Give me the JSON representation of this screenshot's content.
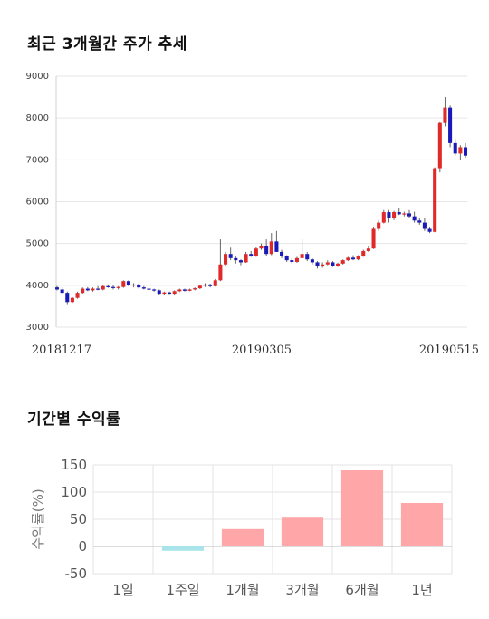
{
  "titles": {
    "price_chart": "최근 3개월간 주가 추세",
    "returns_chart": "기간별 수익률"
  },
  "colors": {
    "up": "#e02a2a",
    "down": "#1a1ab8",
    "wick": "#666666",
    "grid": "#e6e6e6",
    "bar_positive": "#ffa7a8",
    "bar_negative": "#a8e4ea"
  },
  "chart_data": [
    {
      "type": "candlestick",
      "title": "최근 3개월간 주가 추세",
      "ylim": [
        3000,
        9000
      ],
      "yticks": [
        3000,
        4000,
        5000,
        6000,
        7000,
        8000,
        9000
      ],
      "xtick_labels": [
        "20181217",
        "20190305",
        "20190515"
      ],
      "grid": "horizontal",
      "candles": [
        [
          3950,
          3980,
          3880,
          3900
        ],
        [
          3900,
          3950,
          3800,
          3820
        ],
        [
          3820,
          3850,
          3550,
          3600
        ],
        [
          3600,
          3720,
          3580,
          3700
        ],
        [
          3700,
          3850,
          3680,
          3820
        ],
        [
          3820,
          3950,
          3800,
          3920
        ],
        [
          3920,
          3960,
          3860,
          3880
        ],
        [
          3880,
          3950,
          3850,
          3920
        ],
        [
          3920,
          3980,
          3880,
          3900
        ],
        [
          3900,
          4000,
          3880,
          3980
        ],
        [
          3980,
          4020,
          3940,
          3960
        ],
        [
          3960,
          4000,
          3900,
          3950
        ],
        [
          3950,
          3980,
          3900,
          3960
        ],
        [
          3960,
          4120,
          3940,
          4100
        ],
        [
          4100,
          4120,
          3980,
          4000
        ],
        [
          4000,
          4050,
          3950,
          4020
        ],
        [
          4020,
          4040,
          3920,
          3950
        ],
        [
          3950,
          3980,
          3900,
          3920
        ],
        [
          3920,
          3960,
          3880,
          3900
        ],
        [
          3900,
          3920,
          3850,
          3880
        ],
        [
          3880,
          3900,
          3780,
          3800
        ],
        [
          3800,
          3850,
          3780,
          3830
        ],
        [
          3830,
          3850,
          3790,
          3800
        ],
        [
          3800,
          3880,
          3780,
          3860
        ],
        [
          3860,
          3920,
          3840,
          3900
        ],
        [
          3900,
          3920,
          3850,
          3870
        ],
        [
          3870,
          3920,
          3860,
          3900
        ],
        [
          3900,
          3950,
          3880,
          3930
        ],
        [
          3930,
          4000,
          3910,
          3990
        ],
        [
          3990,
          4050,
          3960,
          4020
        ],
        [
          4020,
          4040,
          3950,
          3980
        ],
        [
          3980,
          4150,
          3970,
          4120
        ],
        [
          4120,
          5100,
          4100,
          4500
        ],
        [
          4500,
          4800,
          4450,
          4750
        ],
        [
          4750,
          4900,
          4600,
          4650
        ],
        [
          4650,
          4700,
          4520,
          4600
        ],
        [
          4600,
          4620,
          4480,
          4550
        ],
        [
          4550,
          4800,
          4540,
          4750
        ],
        [
          4750,
          4820,
          4680,
          4700
        ],
        [
          4700,
          4920,
          4680,
          4880
        ],
        [
          4880,
          5000,
          4850,
          4950
        ],
        [
          4950,
          5100,
          4700,
          4750
        ],
        [
          4750,
          5250,
          4720,
          5050
        ],
        [
          5050,
          5300,
          4800,
          4800
        ],
        [
          4800,
          4850,
          4650,
          4700
        ],
        [
          4700,
          4720,
          4560,
          4600
        ],
        [
          4600,
          4650,
          4520,
          4560
        ],
        [
          4560,
          4680,
          4540,
          4650
        ],
        [
          4650,
          5100,
          4640,
          4750
        ],
        [
          4750,
          4800,
          4580,
          4620
        ],
        [
          4620,
          4650,
          4500,
          4550
        ],
        [
          4550,
          4580,
          4400,
          4450
        ],
        [
          4450,
          4550,
          4420,
          4500
        ],
        [
          4500,
          4600,
          4480,
          4550
        ],
        [
          4550,
          4580,
          4440,
          4460
        ],
        [
          4460,
          4540,
          4440,
          4520
        ],
        [
          4520,
          4620,
          4500,
          4600
        ],
        [
          4600,
          4680,
          4580,
          4660
        ],
        [
          4660,
          4720,
          4600,
          4620
        ],
        [
          4620,
          4720,
          4600,
          4700
        ],
        [
          4700,
          4850,
          4680,
          4820
        ],
        [
          4820,
          4950,
          4800,
          4880
        ],
        [
          4880,
          5400,
          4870,
          5350
        ],
        [
          5350,
          5560,
          5300,
          5500
        ],
        [
          5500,
          5800,
          5480,
          5750
        ],
        [
          5750,
          5800,
          5500,
          5600
        ],
        [
          5600,
          5780,
          5560,
          5750
        ],
        [
          5750,
          5850,
          5680,
          5700
        ],
        [
          5700,
          5760,
          5650,
          5720
        ],
        [
          5720,
          5800,
          5600,
          5650
        ],
        [
          5650,
          5760,
          5500,
          5550
        ],
        [
          5550,
          5600,
          5450,
          5500
        ],
        [
          5500,
          5600,
          5300,
          5350
        ],
        [
          5350,
          5400,
          5250,
          5280
        ],
        [
          5280,
          6820,
          5270,
          6800
        ],
        [
          6800,
          7900,
          6700,
          7880
        ],
        [
          7880,
          8500,
          7800,
          8250
        ],
        [
          8250,
          8300,
          7300,
          7400
        ],
        [
          7400,
          7500,
          7100,
          7150
        ],
        [
          7150,
          7350,
          7000,
          7300
        ],
        [
          7300,
          7400,
          7050,
          7100
        ]
      ]
    },
    {
      "type": "bar",
      "title": "기간별 수익률",
      "ylabel": "수익률(%)",
      "ylim": [
        -50,
        150
      ],
      "yticks": [
        -50,
        0,
        50,
        100,
        150
      ],
      "categories": [
        "1일",
        "1주일",
        "1개월",
        "3개월",
        "6개월",
        "1년"
      ],
      "values": [
        0,
        -8,
        32,
        53,
        140,
        80
      ],
      "grid": "both"
    }
  ]
}
